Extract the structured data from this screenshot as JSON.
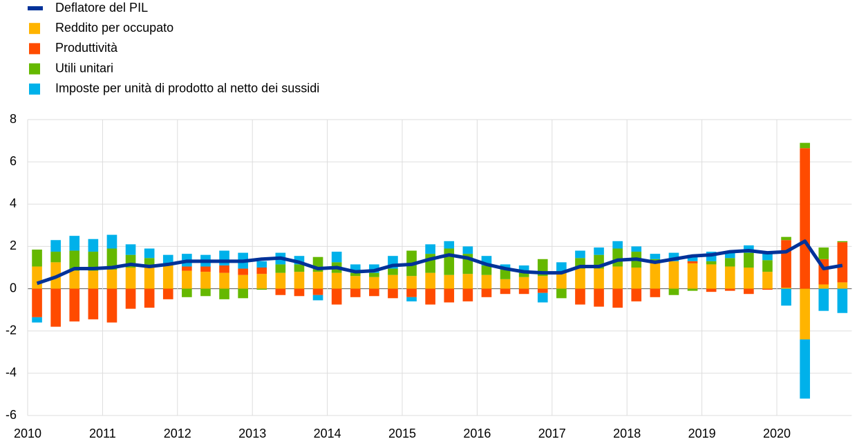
{
  "chart_data": {
    "type": "bar",
    "categories": [
      "2010",
      null,
      null,
      null,
      "2011",
      null,
      null,
      null,
      "2012",
      null,
      null,
      null,
      "2013",
      null,
      null,
      null,
      "2014",
      null,
      null,
      null,
      "2015",
      null,
      null,
      null,
      "2016",
      null,
      null,
      null,
      "2017",
      null,
      null,
      null,
      "2018",
      null,
      null,
      null,
      "2019",
      null,
      null,
      null,
      "2020",
      null,
      null,
      null
    ],
    "ylim": [
      -6,
      8
    ],
    "yticks": [
      -6,
      -4,
      -2,
      0,
      2,
      4,
      6,
      8
    ],
    "grid": true,
    "series": [
      {
        "name": "Deflatore del PIL",
        "type": "line",
        "color": "#003299",
        "values": [
          0.25,
          0.55,
          0.95,
          0.95,
          1.0,
          1.15,
          1.05,
          1.15,
          1.3,
          1.3,
          1.3,
          1.3,
          1.4,
          1.45,
          1.25,
          0.95,
          1.0,
          0.8,
          0.85,
          1.1,
          1.15,
          1.4,
          1.6,
          1.45,
          1.15,
          0.95,
          0.8,
          0.75,
          0.75,
          1.05,
          1.05,
          1.35,
          1.4,
          1.25,
          1.4,
          1.55,
          1.6,
          1.75,
          1.8,
          1.7,
          1.75,
          2.25,
          0.95,
          1.1
        ]
      },
      {
        "name": "Reddito per occupato",
        "type": "bar",
        "color": "#ffb400",
        "values": [
          1.05,
          1.25,
          0.85,
          0.85,
          0.9,
          1.0,
          1.0,
          1.1,
          0.85,
          0.8,
          0.75,
          0.65,
          0.7,
          0.75,
          0.8,
          0.8,
          0.75,
          0.6,
          0.55,
          0.65,
          0.6,
          0.75,
          0.65,
          0.7,
          0.65,
          0.45,
          0.55,
          0.6,
          0.75,
          0.95,
          0.95,
          1.05,
          1.0,
          1.2,
          1.3,
          1.2,
          1.15,
          1.05,
          1.0,
          0.8,
          0.05,
          -2.4,
          0.2,
          0.3
        ]
      },
      {
        "name": "Produttività",
        "type": "bar",
        "color": "#ff4b00",
        "values": [
          -1.35,
          -1.8,
          -1.55,
          -1.45,
          -1.6,
          -0.95,
          -0.9,
          -0.5,
          0.2,
          0.25,
          0.35,
          0.3,
          0.3,
          -0.3,
          -0.35,
          -0.3,
          -0.75,
          -0.4,
          -0.35,
          -0.45,
          -0.4,
          -0.75,
          -0.65,
          -0.6,
          -0.4,
          -0.25,
          -0.25,
          -0.2,
          0,
          -0.75,
          -0.85,
          -0.9,
          -0.6,
          -0.4,
          0,
          0.1,
          -0.15,
          -0.1,
          -0.25,
          -0.05,
          2.25,
          6.65,
          1.2,
          1.9
        ]
      },
      {
        "name": "Utili unitari",
        "type": "bar",
        "color": "#65b800",
        "values": [
          0.8,
          0.5,
          0.95,
          0.9,
          1.0,
          0.6,
          0.45,
          0.1,
          -0.4,
          -0.35,
          -0.5,
          -0.45,
          -0.05,
          0.4,
          0.35,
          0.7,
          0.5,
          0.15,
          0.2,
          0.3,
          1.2,
          0.9,
          1.25,
          0.95,
          0.45,
          0.45,
          0.2,
          0.8,
          -0.45,
          0.5,
          0.65,
          0.85,
          0.75,
          0.2,
          -0.3,
          -0.1,
          0.15,
          0.4,
          0.7,
          0.55,
          0.15,
          0.25,
          0.55,
          0.05
        ]
      },
      {
        "name": "Imposte per unità di prodotto al netto dei sussidi",
        "type": "bar",
        "color": "#00b1ea",
        "values": [
          -0.25,
          0.55,
          0.7,
          0.6,
          0.65,
          0.5,
          0.45,
          0.4,
          0.6,
          0.55,
          0.7,
          0.75,
          0.3,
          0.55,
          0.4,
          -0.25,
          0.5,
          0.4,
          0.4,
          0.6,
          -0.2,
          0.45,
          0.35,
          0.35,
          0.45,
          0.25,
          0.35,
          -0.45,
          0.5,
          0.35,
          0.35,
          0.35,
          0.25,
          0.25,
          0.4,
          0.3,
          0.45,
          0.25,
          0.35,
          0.3,
          -0.8,
          -2.8,
          -1.05,
          -1.15
        ]
      }
    ]
  }
}
